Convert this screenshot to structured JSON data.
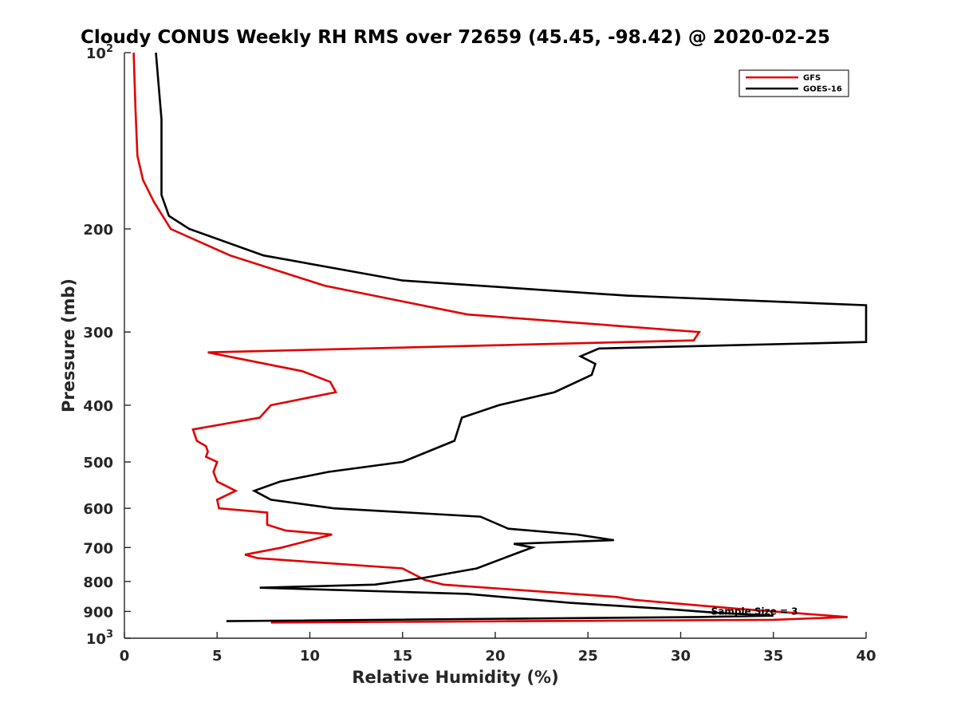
{
  "chart_data": {
    "type": "line",
    "title": "Cloudy CONUS Weekly RH RMS over 72659 (45.45, -98.42) @ 2020-02-25",
    "xlabel": "Relative Humidity (%)",
    "ylabel": "Pressure (mb)",
    "xlim": [
      0,
      40
    ],
    "ylim": [
      100,
      1000
    ],
    "y_scale": "log",
    "y_reversed": true,
    "grid": false,
    "legend_position": "top-right",
    "x_ticks": [
      "0",
      "5",
      "10",
      "15",
      "20",
      "25",
      "30",
      "35",
      "40"
    ],
    "y_ticks": [
      {
        "value": 100,
        "base": "10",
        "exp": "2"
      },
      {
        "value": 200,
        "label": "200"
      },
      {
        "value": 300,
        "label": "300"
      },
      {
        "value": 400,
        "label": "400"
      },
      {
        "value": 500,
        "label": "500"
      },
      {
        "value": 600,
        "label": "600"
      },
      {
        "value": 700,
        "label": "700"
      },
      {
        "value": 800,
        "label": "800"
      },
      {
        "value": 900,
        "label": "900"
      },
      {
        "value": 1000,
        "base": "10",
        "exp": "3"
      }
    ],
    "series": [
      {
        "name": "GFS",
        "color": "#e00000",
        "points": [
          [
            0.5,
            100
          ],
          [
            0.6,
            125
          ],
          [
            0.7,
            150
          ],
          [
            1.0,
            165
          ],
          [
            1.6,
            180
          ],
          [
            2.5,
            200
          ],
          [
            5.7,
            222
          ],
          [
            10.8,
            250
          ],
          [
            18.5,
            280
          ],
          [
            31.0,
            300
          ],
          [
            30.7,
            310
          ],
          [
            4.5,
            325
          ],
          [
            9.6,
            350
          ],
          [
            11.1,
            365
          ],
          [
            11.4,
            380
          ],
          [
            7.9,
            400
          ],
          [
            7.3,
            420
          ],
          [
            3.7,
            440
          ],
          [
            3.9,
            460
          ],
          [
            4.4,
            470
          ],
          [
            4.5,
            480
          ],
          [
            4.4,
            490
          ],
          [
            5.0,
            500
          ],
          [
            4.8,
            520
          ],
          [
            5.0,
            540
          ],
          [
            6.0,
            560
          ],
          [
            5.0,
            580
          ],
          [
            5.1,
            600
          ],
          [
            7.7,
            610
          ],
          [
            7.7,
            640
          ],
          [
            8.7,
            655
          ],
          [
            11.2,
            665
          ],
          [
            8.5,
            700
          ],
          [
            6.5,
            720
          ],
          [
            7.2,
            730
          ],
          [
            15.0,
            760
          ],
          [
            16.2,
            795
          ],
          [
            17.2,
            810
          ],
          [
            26.5,
            850
          ],
          [
            27.5,
            860
          ],
          [
            33.0,
            890
          ],
          [
            39.0,
            920
          ],
          [
            35.0,
            930
          ],
          [
            7.9,
            940
          ]
        ]
      },
      {
        "name": "GOES-16",
        "color": "#000000",
        "points": [
          [
            1.7,
            100
          ],
          [
            2.0,
            130
          ],
          [
            2.0,
            160
          ],
          [
            2.0,
            175
          ],
          [
            2.4,
            190
          ],
          [
            3.5,
            200
          ],
          [
            7.5,
            222
          ],
          [
            15.0,
            245
          ],
          [
            27.1,
            260
          ],
          [
            40.0,
            270
          ],
          [
            40.0,
            312
          ],
          [
            25.6,
            320
          ],
          [
            24.6,
            330
          ],
          [
            25.4,
            340
          ],
          [
            25.2,
            355
          ],
          [
            23.2,
            380
          ],
          [
            20.2,
            400
          ],
          [
            18.2,
            420
          ],
          [
            17.8,
            460
          ],
          [
            15.0,
            500
          ],
          [
            11.0,
            520
          ],
          [
            8.4,
            540
          ],
          [
            7.0,
            560
          ],
          [
            7.9,
            580
          ],
          [
            11.3,
            600
          ],
          [
            19.2,
            620
          ],
          [
            20.7,
            650
          ],
          [
            24.4,
            665
          ],
          [
            26.4,
            680
          ],
          [
            21.0,
            690
          ],
          [
            22.0,
            700
          ],
          [
            21.2,
            715
          ],
          [
            19.0,
            760
          ],
          [
            16.0,
            790
          ],
          [
            13.5,
            810
          ],
          [
            7.3,
            820
          ],
          [
            18.5,
            840
          ],
          [
            24.0,
            870
          ],
          [
            29.0,
            890
          ],
          [
            32.0,
            905
          ],
          [
            35.0,
            915
          ],
          [
            31.0,
            920
          ],
          [
            5.5,
            935
          ]
        ]
      }
    ],
    "annotations": [
      {
        "text": "Sample Size = 3",
        "x": 32.5,
        "y": 900
      }
    ]
  }
}
